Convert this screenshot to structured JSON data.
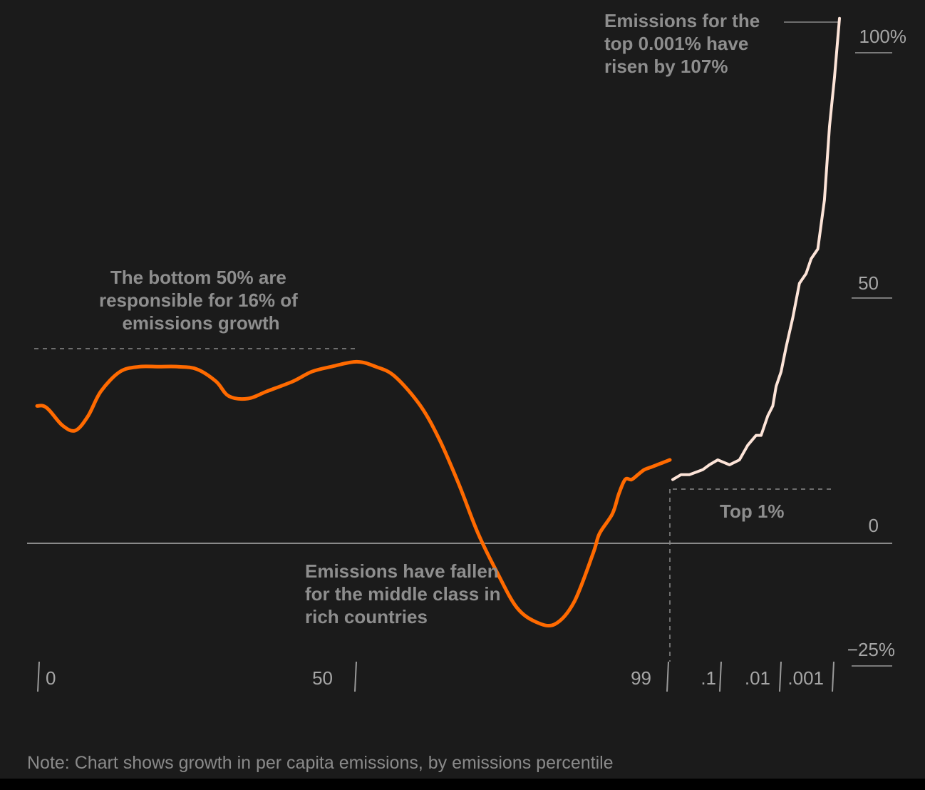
{
  "chart_data": {
    "type": "line",
    "yticks": [
      "100%",
      "50",
      "0",
      "−25%"
    ],
    "ytick_values": [
      100,
      50,
      0,
      -25
    ],
    "ylim": [
      -25,
      100
    ],
    "xticks": [
      "0",
      "50",
      "99",
      ".1",
      ".01",
      ".001"
    ],
    "series": [
      {
        "color": "#ff6a00",
        "x": [
          0,
          1,
          2,
          4,
          6,
          8,
          10,
          13,
          16,
          19,
          22,
          25,
          28,
          30,
          33,
          36,
          40,
          43,
          46,
          50,
          53,
          56,
          60,
          63,
          66,
          69,
          72,
          75,
          78,
          81,
          84,
          87,
          88,
          90,
          91,
          92,
          93,
          94,
          95,
          96,
          97,
          98,
          99
        ],
        "values": [
          28,
          28,
          27,
          24,
          23,
          26,
          31,
          35,
          36,
          36,
          36,
          35.5,
          33,
          30,
          29.5,
          31,
          33,
          35,
          36,
          37,
          36,
          34,
          28,
          21,
          12,
          2,
          -6,
          -13,
          -16,
          -16.5,
          -12,
          -2,
          2,
          6,
          10,
          13,
          13,
          14,
          15,
          15.5,
          16,
          16.5,
          17
        ],
        "x_is_percentile": true
      },
      {
        "color": "#fde4d8",
        "note": "top 1% (log-spaced percentile axis)",
        "x_frac": [
          0,
          0.05,
          0.1,
          0.18,
          0.22,
          0.27,
          0.34,
          0.4,
          0.45,
          0.5,
          0.53,
          0.57,
          0.6,
          0.62,
          0.65,
          0.68,
          0.72,
          0.76,
          0.8,
          0.83,
          0.87,
          0.91,
          0.94,
          0.97,
          1.0
        ],
        "values": [
          13,
          14,
          14,
          15,
          16,
          17,
          16,
          17,
          20,
          22,
          22,
          26,
          28,
          32,
          35,
          40,
          46,
          53,
          55,
          58,
          60,
          70,
          85,
          95,
          107
        ]
      }
    ],
    "annotations": {
      "top": "Emissions for the top 0.001% have risen by 107%",
      "bottom50": "The bottom 50% are responsible for 16% of emissions growth",
      "middle": "Emissions have fallen for the middle class in rich countries",
      "top1": "Top 1%"
    }
  },
  "annotations": {
    "top_lines": [
      "Emissions for the",
      "top 0.001% have",
      "risen by 107%"
    ],
    "bottom50_lines": [
      "The bottom 50% are",
      "responsible for 16% of",
      "emissions growth"
    ],
    "middle_lines": [
      "Emissions have fallen",
      "for the middle class in",
      "rich countries"
    ],
    "top1": "Top 1%"
  },
  "note": "Note: Chart shows growth in per capita emissions, by emissions percentile"
}
